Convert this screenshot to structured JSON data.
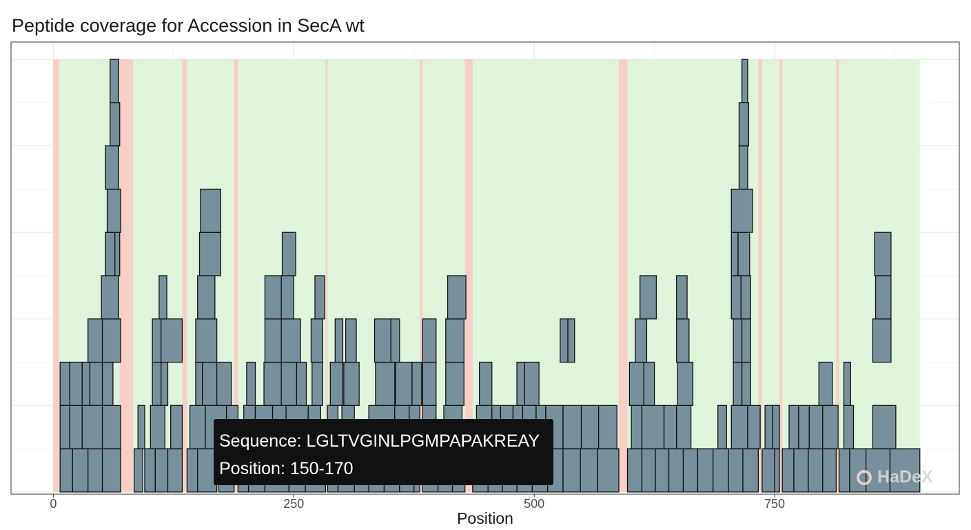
{
  "chart_data": {
    "type": "bar",
    "title": "Peptide coverage for Accession in SecA wt",
    "xlabel": "Position",
    "ylabel": "",
    "xlim": [
      -44,
      942
    ],
    "xticks": [
      0,
      250,
      500,
      750
    ],
    "ylim": [
      -0.05,
      10.4
    ],
    "grid": true,
    "protein_length": 901,
    "uncovered_colour": "#f6cfc6",
    "covered_colour": "#dff4da",
    "peptide_fill": "#78909c",
    "peptide_stroke": "#111111",
    "uncovered_regions": [
      [
        0,
        6
      ],
      [
        69,
        83
      ],
      [
        134,
        139
      ],
      [
        188,
        192
      ],
      [
        283,
        285
      ],
      [
        381,
        384
      ],
      [
        428,
        436
      ],
      [
        588,
        597
      ],
      [
        733,
        737
      ],
      [
        755,
        758
      ],
      [
        814,
        817
      ]
    ],
    "peptides": [
      {
        "start": 7,
        "end": 20,
        "level": 0
      },
      {
        "start": 20,
        "end": 36,
        "level": 0
      },
      {
        "start": 36,
        "end": 51,
        "level": 0
      },
      {
        "start": 51,
        "end": 70,
        "level": 0
      },
      {
        "start": 84,
        "end": 93,
        "level": 0
      },
      {
        "start": 95,
        "end": 106,
        "level": 0
      },
      {
        "start": 106,
        "end": 119,
        "level": 0
      },
      {
        "start": 119,
        "end": 134,
        "level": 0
      },
      {
        "start": 139,
        "end": 155,
        "level": 0
      },
      {
        "start": 150,
        "end": 170,
        "level": 0
      },
      {
        "start": 172,
        "end": 188,
        "level": 0
      },
      {
        "start": 192,
        "end": 203,
        "level": 0
      },
      {
        "start": 203,
        "end": 220,
        "level": 0
      },
      {
        "start": 220,
        "end": 245,
        "level": 0
      },
      {
        "start": 245,
        "end": 262,
        "level": 0
      },
      {
        "start": 262,
        "end": 283,
        "level": 0
      },
      {
        "start": 285,
        "end": 296,
        "level": 0
      },
      {
        "start": 296,
        "end": 313,
        "level": 0
      },
      {
        "start": 313,
        "end": 328,
        "level": 0
      },
      {
        "start": 328,
        "end": 344,
        "level": 0
      },
      {
        "start": 344,
        "end": 360,
        "level": 0
      },
      {
        "start": 360,
        "end": 375,
        "level": 0
      },
      {
        "start": 375,
        "end": 381,
        "level": 0
      },
      {
        "start": 384,
        "end": 400,
        "level": 0
      },
      {
        "start": 400,
        "end": 415,
        "level": 0
      },
      {
        "start": 415,
        "end": 428,
        "level": 0
      },
      {
        "start": 436,
        "end": 452,
        "level": 0
      },
      {
        "start": 452,
        "end": 467,
        "level": 0
      },
      {
        "start": 467,
        "end": 482,
        "level": 0
      },
      {
        "start": 482,
        "end": 498,
        "level": 0
      },
      {
        "start": 498,
        "end": 514,
        "level": 0
      },
      {
        "start": 514,
        "end": 530,
        "level": 0
      },
      {
        "start": 530,
        "end": 548,
        "level": 0
      },
      {
        "start": 548,
        "end": 566,
        "level": 0
      },
      {
        "start": 566,
        "end": 588,
        "level": 0
      },
      {
        "start": 597,
        "end": 612,
        "level": 0
      },
      {
        "start": 612,
        "end": 626,
        "level": 0
      },
      {
        "start": 626,
        "end": 640,
        "level": 0
      },
      {
        "start": 640,
        "end": 655,
        "level": 0
      },
      {
        "start": 655,
        "end": 670,
        "level": 0
      },
      {
        "start": 670,
        "end": 686,
        "level": 0
      },
      {
        "start": 686,
        "end": 702,
        "level": 0
      },
      {
        "start": 702,
        "end": 717,
        "level": 0
      },
      {
        "start": 717,
        "end": 733,
        "level": 0
      },
      {
        "start": 737,
        "end": 750,
        "level": 0
      },
      {
        "start": 750,
        "end": 755,
        "level": 0
      },
      {
        "start": 758,
        "end": 770,
        "level": 0
      },
      {
        "start": 770,
        "end": 785,
        "level": 0
      },
      {
        "start": 785,
        "end": 800,
        "level": 0
      },
      {
        "start": 800,
        "end": 814,
        "level": 0
      },
      {
        "start": 817,
        "end": 828,
        "level": 0
      },
      {
        "start": 828,
        "end": 845,
        "level": 0
      },
      {
        "start": 845,
        "end": 870,
        "level": 0
      },
      {
        "start": 870,
        "end": 901,
        "level": 0
      },
      {
        "start": 7,
        "end": 17,
        "level": 1
      },
      {
        "start": 17,
        "end": 30,
        "level": 1
      },
      {
        "start": 30,
        "end": 51,
        "level": 1
      },
      {
        "start": 51,
        "end": 70,
        "level": 1
      },
      {
        "start": 88,
        "end": 95,
        "level": 1
      },
      {
        "start": 101,
        "end": 116,
        "level": 1
      },
      {
        "start": 122,
        "end": 134,
        "level": 1
      },
      {
        "start": 142,
        "end": 158,
        "level": 1
      },
      {
        "start": 158,
        "end": 180,
        "level": 1
      },
      {
        "start": 180,
        "end": 192,
        "level": 1
      },
      {
        "start": 198,
        "end": 210,
        "level": 1
      },
      {
        "start": 210,
        "end": 228,
        "level": 1
      },
      {
        "start": 228,
        "end": 242,
        "level": 1
      },
      {
        "start": 242,
        "end": 265,
        "level": 1
      },
      {
        "start": 265,
        "end": 278,
        "level": 1
      },
      {
        "start": 285,
        "end": 296,
        "level": 1
      },
      {
        "start": 300,
        "end": 313,
        "level": 1
      },
      {
        "start": 328,
        "end": 355,
        "level": 1
      },
      {
        "start": 355,
        "end": 370,
        "level": 1
      },
      {
        "start": 370,
        "end": 381,
        "level": 1
      },
      {
        "start": 384,
        "end": 398,
        "level": 1
      },
      {
        "start": 406,
        "end": 425,
        "level": 1
      },
      {
        "start": 440,
        "end": 456,
        "level": 1
      },
      {
        "start": 456,
        "end": 465,
        "level": 1
      },
      {
        "start": 465,
        "end": 478,
        "level": 1
      },
      {
        "start": 478,
        "end": 488,
        "level": 1
      },
      {
        "start": 488,
        "end": 502,
        "level": 1
      },
      {
        "start": 502,
        "end": 512,
        "level": 1
      },
      {
        "start": 512,
        "end": 530,
        "level": 1
      },
      {
        "start": 530,
        "end": 549,
        "level": 1
      },
      {
        "start": 549,
        "end": 567,
        "level": 1
      },
      {
        "start": 567,
        "end": 586,
        "level": 1
      },
      {
        "start": 601,
        "end": 612,
        "level": 1
      },
      {
        "start": 612,
        "end": 635,
        "level": 1
      },
      {
        "start": 635,
        "end": 648,
        "level": 1
      },
      {
        "start": 648,
        "end": 663,
        "level": 1
      },
      {
        "start": 691,
        "end": 700,
        "level": 1
      },
      {
        "start": 705,
        "end": 722,
        "level": 1
      },
      {
        "start": 722,
        "end": 735,
        "level": 1
      },
      {
        "start": 740,
        "end": 748,
        "level": 1
      },
      {
        "start": 748,
        "end": 755,
        "level": 1
      },
      {
        "start": 765,
        "end": 775,
        "level": 1
      },
      {
        "start": 775,
        "end": 786,
        "level": 1
      },
      {
        "start": 786,
        "end": 800,
        "level": 1
      },
      {
        "start": 800,
        "end": 816,
        "level": 1
      },
      {
        "start": 822,
        "end": 832,
        "level": 1
      },
      {
        "start": 852,
        "end": 876,
        "level": 1
      },
      {
        "start": 7,
        "end": 17,
        "level": 2
      },
      {
        "start": 17,
        "end": 30,
        "level": 2
      },
      {
        "start": 30,
        "end": 38,
        "level": 2
      },
      {
        "start": 38,
        "end": 51,
        "level": 2
      },
      {
        "start": 51,
        "end": 62,
        "level": 2
      },
      {
        "start": 103,
        "end": 112,
        "level": 2
      },
      {
        "start": 112,
        "end": 119,
        "level": 2
      },
      {
        "start": 148,
        "end": 155,
        "level": 2
      },
      {
        "start": 155,
        "end": 170,
        "level": 2
      },
      {
        "start": 170,
        "end": 185,
        "level": 2
      },
      {
        "start": 201,
        "end": 210,
        "level": 2
      },
      {
        "start": 219,
        "end": 237,
        "level": 2
      },
      {
        "start": 237,
        "end": 253,
        "level": 2
      },
      {
        "start": 253,
        "end": 263,
        "level": 2
      },
      {
        "start": 269,
        "end": 280,
        "level": 2
      },
      {
        "start": 288,
        "end": 301,
        "level": 2
      },
      {
        "start": 302,
        "end": 318,
        "level": 2
      },
      {
        "start": 335,
        "end": 355,
        "level": 2
      },
      {
        "start": 356,
        "end": 373,
        "level": 2
      },
      {
        "start": 373,
        "end": 383,
        "level": 2
      },
      {
        "start": 384,
        "end": 398,
        "level": 2
      },
      {
        "start": 408,
        "end": 427,
        "level": 2
      },
      {
        "start": 443,
        "end": 456,
        "level": 2
      },
      {
        "start": 482,
        "end": 490,
        "level": 2
      },
      {
        "start": 490,
        "end": 505,
        "level": 2
      },
      {
        "start": 599,
        "end": 614,
        "level": 2
      },
      {
        "start": 614,
        "end": 625,
        "level": 2
      },
      {
        "start": 649,
        "end": 665,
        "level": 2
      },
      {
        "start": 707,
        "end": 716,
        "level": 2
      },
      {
        "start": 716,
        "end": 725,
        "level": 2
      },
      {
        "start": 796,
        "end": 810,
        "level": 2
      },
      {
        "start": 822,
        "end": 829,
        "level": 2
      },
      {
        "start": 36,
        "end": 51,
        "level": 3
      },
      {
        "start": 51,
        "end": 70,
        "level": 3
      },
      {
        "start": 103,
        "end": 112,
        "level": 3
      },
      {
        "start": 112,
        "end": 134,
        "level": 3
      },
      {
        "start": 148,
        "end": 170,
        "level": 3
      },
      {
        "start": 220,
        "end": 237,
        "level": 3
      },
      {
        "start": 237,
        "end": 257,
        "level": 3
      },
      {
        "start": 268,
        "end": 280,
        "level": 3
      },
      {
        "start": 293,
        "end": 301,
        "level": 3
      },
      {
        "start": 304,
        "end": 315,
        "level": 3
      },
      {
        "start": 334,
        "end": 351,
        "level": 3
      },
      {
        "start": 351,
        "end": 360,
        "level": 3
      },
      {
        "start": 384,
        "end": 398,
        "level": 3
      },
      {
        "start": 408,
        "end": 427,
        "level": 3
      },
      {
        "start": 527,
        "end": 535,
        "level": 3
      },
      {
        "start": 535,
        "end": 542,
        "level": 3
      },
      {
        "start": 605,
        "end": 617,
        "level": 3
      },
      {
        "start": 648,
        "end": 661,
        "level": 3
      },
      {
        "start": 707,
        "end": 716,
        "level": 3
      },
      {
        "start": 716,
        "end": 725,
        "level": 3
      },
      {
        "start": 852,
        "end": 871,
        "level": 3
      },
      {
        "start": 50,
        "end": 68,
        "level": 4
      },
      {
        "start": 110,
        "end": 118,
        "level": 4
      },
      {
        "start": 150,
        "end": 168,
        "level": 4
      },
      {
        "start": 220,
        "end": 237,
        "level": 4
      },
      {
        "start": 237,
        "end": 250,
        "level": 4
      },
      {
        "start": 272,
        "end": 282,
        "level": 4
      },
      {
        "start": 410,
        "end": 429,
        "level": 4
      },
      {
        "start": 610,
        "end": 627,
        "level": 4
      },
      {
        "start": 648,
        "end": 659,
        "level": 4
      },
      {
        "start": 705,
        "end": 715,
        "level": 4
      },
      {
        "start": 715,
        "end": 725,
        "level": 4
      },
      {
        "start": 855,
        "end": 871,
        "level": 4
      },
      {
        "start": 54,
        "end": 64,
        "level": 5
      },
      {
        "start": 64,
        "end": 69,
        "level": 5
      },
      {
        "start": 152,
        "end": 174,
        "level": 5
      },
      {
        "start": 238,
        "end": 252,
        "level": 5
      },
      {
        "start": 705,
        "end": 712,
        "level": 5
      },
      {
        "start": 712,
        "end": 724,
        "level": 5
      },
      {
        "start": 854,
        "end": 871,
        "level": 5
      },
      {
        "start": 56,
        "end": 70,
        "level": 6
      },
      {
        "start": 153,
        "end": 174,
        "level": 6
      },
      {
        "start": 705,
        "end": 727,
        "level": 6
      },
      {
        "start": 54,
        "end": 68,
        "level": 7
      },
      {
        "start": 713,
        "end": 722,
        "level": 7
      },
      {
        "start": 59,
        "end": 69,
        "level": 8
      },
      {
        "start": 713,
        "end": 723,
        "level": 8
      },
      {
        "start": 59,
        "end": 68,
        "level": 9
      },
      {
        "start": 716,
        "end": 722,
        "level": 9
      }
    ]
  },
  "tooltip": {
    "sequence_line": "Sequence: LGLTVGINLPGMPAPAKREAY",
    "position_line": "Position: 150-170"
  },
  "watermark": "HaDeX"
}
